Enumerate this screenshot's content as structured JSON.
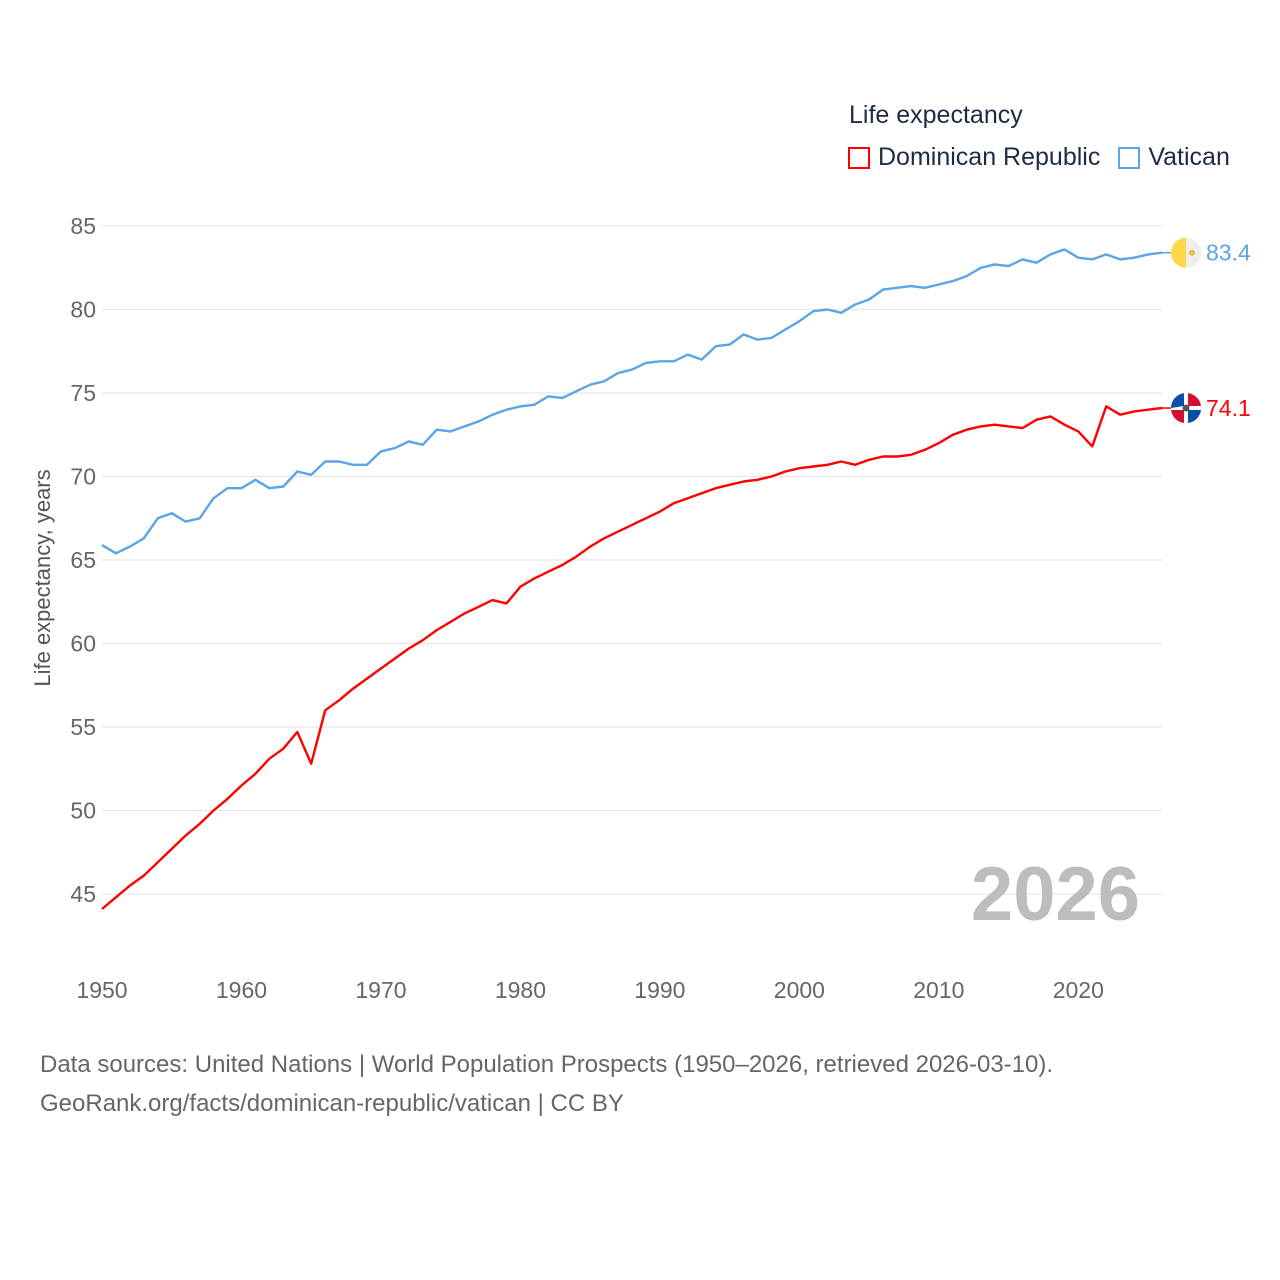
{
  "chart_data": {
    "type": "line",
    "legend_title": "Life expectancy",
    "ylabel": "Life expectancy, years",
    "xlabel": "",
    "ylim": [
      45,
      85
    ],
    "xlim": [
      1950,
      2026
    ],
    "yticks": [
      45,
      50,
      55,
      60,
      65,
      70,
      75,
      80,
      85
    ],
    "xticks": [
      1950,
      1960,
      1970,
      1980,
      1990,
      2000,
      2010,
      2020
    ],
    "grid": true,
    "legend_position": "top-right",
    "year_watermark": "2026",
    "x": [
      1950,
      1951,
      1952,
      1953,
      1954,
      1955,
      1956,
      1957,
      1958,
      1959,
      1960,
      1961,
      1962,
      1963,
      1964,
      1965,
      1966,
      1967,
      1968,
      1969,
      1970,
      1971,
      1972,
      1973,
      1974,
      1975,
      1976,
      1977,
      1978,
      1979,
      1980,
      1981,
      1982,
      1983,
      1984,
      1985,
      1986,
      1987,
      1988,
      1989,
      1990,
      1991,
      1992,
      1993,
      1994,
      1995,
      1996,
      1997,
      1998,
      1999,
      2000,
      2001,
      2002,
      2003,
      2004,
      2005,
      2006,
      2007,
      2008,
      2009,
      2010,
      2011,
      2012,
      2013,
      2014,
      2015,
      2016,
      2017,
      2018,
      2019,
      2020,
      2021,
      2022,
      2023,
      2024,
      2025,
      2026
    ],
    "series": [
      {
        "name": "Dominican Republic",
        "color": "#ff0000",
        "end_label": "74.1",
        "values": [
          44.1,
          44.8,
          45.5,
          46.1,
          46.9,
          47.7,
          48.5,
          49.2,
          50.0,
          50.7,
          51.5,
          52.2,
          53.1,
          53.7,
          54.7,
          52.8,
          56.0,
          56.6,
          57.3,
          57.9,
          58.5,
          59.1,
          59.7,
          60.2,
          60.8,
          61.3,
          61.8,
          62.2,
          62.6,
          62.4,
          63.4,
          63.9,
          64.3,
          64.7,
          65.2,
          65.8,
          66.3,
          66.7,
          67.1,
          67.5,
          67.9,
          68.4,
          68.7,
          69.0,
          69.3,
          69.5,
          69.7,
          69.8,
          70.0,
          70.3,
          70.5,
          70.6,
          70.7,
          70.9,
          70.7,
          71.0,
          71.2,
          71.2,
          71.3,
          71.6,
          72.0,
          72.5,
          72.8,
          73.0,
          73.1,
          73.0,
          72.9,
          73.4,
          73.6,
          73.1,
          72.7,
          71.8,
          74.2,
          73.7,
          73.9,
          74.0,
          74.1
        ]
      },
      {
        "name": "Vatican",
        "color": "#5ba4e8",
        "end_label": "83.4",
        "values": [
          65.9,
          65.4,
          65.8,
          66.3,
          67.5,
          67.8,
          67.3,
          67.5,
          68.7,
          69.3,
          69.3,
          69.8,
          69.3,
          69.4,
          70.3,
          70.1,
          70.9,
          70.9,
          70.7,
          70.7,
          71.5,
          71.7,
          72.1,
          71.9,
          72.8,
          72.7,
          73.0,
          73.3,
          73.7,
          74.0,
          74.2,
          74.3,
          74.8,
          74.7,
          75.1,
          75.5,
          75.7,
          76.2,
          76.4,
          76.8,
          76.9,
          76.9,
          77.3,
          77.0,
          77.8,
          77.9,
          78.5,
          78.2,
          78.3,
          78.8,
          79.3,
          79.9,
          80.0,
          79.8,
          80.3,
          80.6,
          81.2,
          81.3,
          81.4,
          81.3,
          81.5,
          81.7,
          82.0,
          82.5,
          82.7,
          82.6,
          83.0,
          82.8,
          83.3,
          83.6,
          83.1,
          83.0,
          83.3,
          83.0,
          83.1,
          83.3,
          83.4
        ]
      }
    ]
  },
  "footer": {
    "line1": "Data sources: United Nations | World Population Prospects (1950–2026, retrieved 2026-03-10).",
    "line2": "GeoRank.org/facts/dominican-republic/vatican | CC BY"
  }
}
